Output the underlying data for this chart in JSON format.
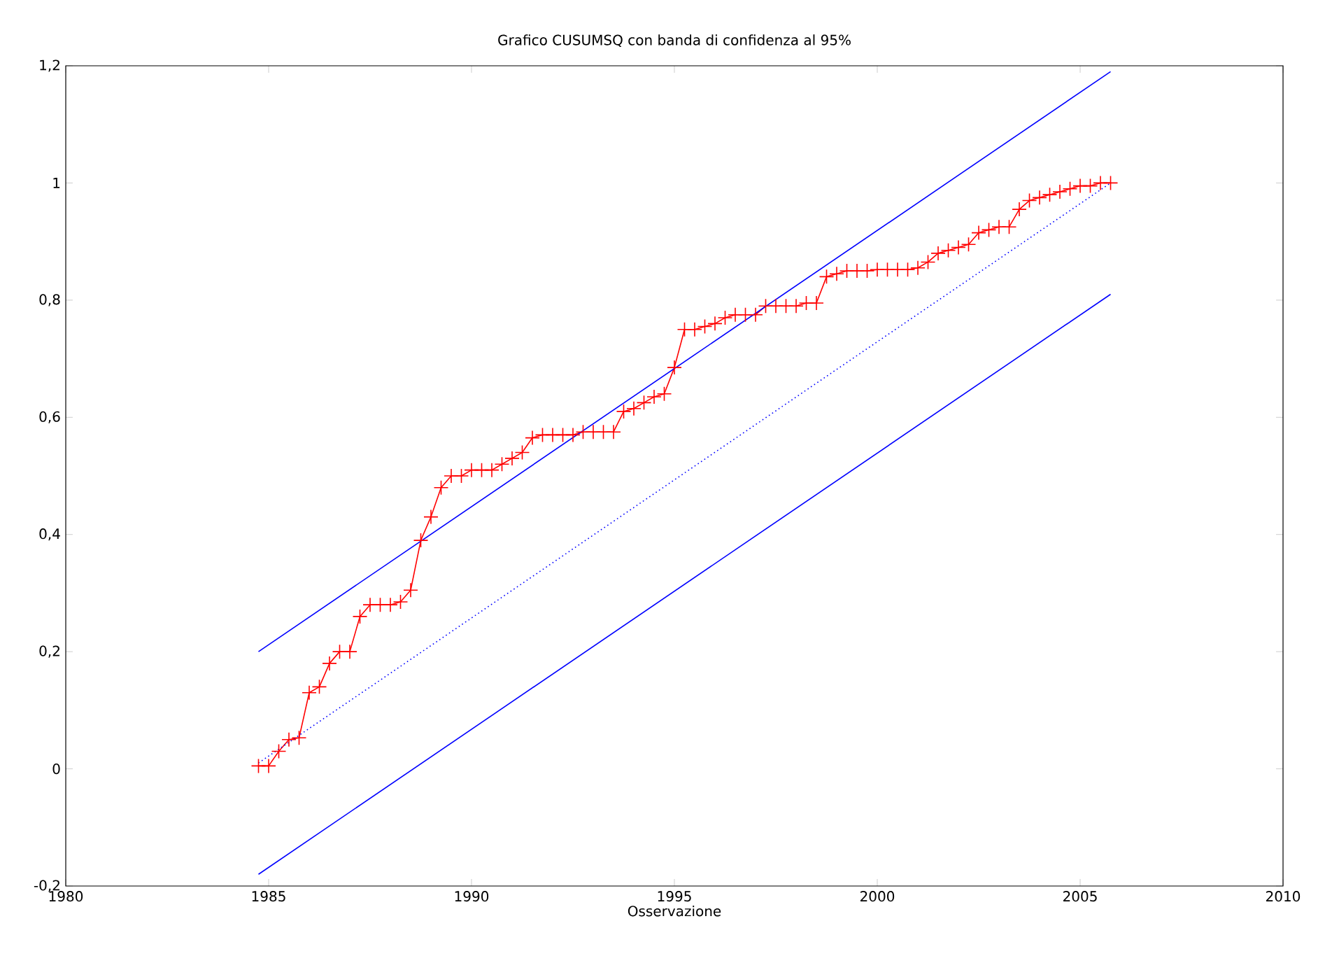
{
  "chart_data": {
    "type": "line",
    "title": "Grafico CUSUMSQ con banda di confidenza al 95%",
    "xlabel": "Osservazione",
    "xlim": [
      1980,
      2010
    ],
    "xticks": [
      1980,
      1985,
      1990,
      1995,
      2000,
      2005,
      2010
    ],
    "ylim": [
      -0.2,
      1.2
    ],
    "yticks": [
      {
        "value": -0.2,
        "label": "-0,2"
      },
      0,
      {
        "value": 0.2,
        "label": "0,2"
      },
      {
        "value": 0.4,
        "label": "0,4"
      },
      {
        "value": 0.6,
        "label": "0,6"
      },
      {
        "value": 0.8,
        "label": "0,8"
      },
      1,
      {
        "value": 1.2,
        "label": "1,2"
      }
    ],
    "series": [
      {
        "color": "#ff0000",
        "marker": "cross",
        "line_style": "solid",
        "x": [
          1984.75,
          1985,
          1985.25,
          1985.5,
          1985.75,
          1986,
          1986.25,
          1986.5,
          1986.75,
          1987,
          1987.25,
          1987.5,
          1987.75,
          1988,
          1988.25,
          1988.5,
          1988.75,
          1989,
          1989.25,
          1989.5,
          1989.75,
          1990,
          1990.25,
          1990.5,
          1990.75,
          1991,
          1991.25,
          1991.5,
          1991.75,
          1992,
          1992.25,
          1992.5,
          1992.75,
          1993,
          1993.25,
          1993.5,
          1993.75,
          1994,
          1994.25,
          1994.5,
          1994.75,
          1995,
          1995.25,
          1995.5,
          1995.75,
          1996,
          1996.25,
          1996.5,
          1996.75,
          1997,
          1997.25,
          1997.5,
          1997.75,
          1998,
          1998.25,
          1998.5,
          1998.75,
          1999,
          1999.25,
          1999.5,
          1999.75,
          2000,
          2000.25,
          2000.5,
          2000.75,
          2001,
          2001.25,
          2001.5,
          2001.75,
          2002,
          2002.25,
          2002.5,
          2002.75,
          2003,
          2003.25,
          2003.5,
          2003.75,
          2004,
          2004.25,
          2004.5,
          2004.75,
          2005,
          2005.25,
          2005.5,
          2005.75
        ],
        "values": [
          0.005,
          0.005,
          0.03,
          0.05,
          0.053,
          0.13,
          0.14,
          0.18,
          0.2,
          0.2,
          0.26,
          0.28,
          0.28,
          0.28,
          0.285,
          0.305,
          0.39,
          0.43,
          0.48,
          0.5,
          0.5,
          0.51,
          0.51,
          0.51,
          0.52,
          0.53,
          0.54,
          0.565,
          0.57,
          0.57,
          0.57,
          0.57,
          0.575,
          0.575,
          0.575,
          0.575,
          0.61,
          0.615,
          0.625,
          0.635,
          0.64,
          0.685,
          0.75,
          0.75,
          0.755,
          0.76,
          0.77,
          0.775,
          0.775,
          0.775,
          0.79,
          0.79,
          0.79,
          0.79,
          0.795,
          0.795,
          0.84,
          0.845,
          0.85,
          0.85,
          0.85,
          0.852,
          0.852,
          0.852,
          0.852,
          0.855,
          0.865,
          0.88,
          0.885,
          0.89,
          0.895,
          0.915,
          0.92,
          0.925,
          0.925,
          0.955,
          0.97,
          0.975,
          0.98,
          0.985,
          0.99,
          0.995,
          0.995,
          1.0,
          1.0
        ]
      },
      {
        "color": "#0000ff",
        "marker": "none",
        "line_style": "solid",
        "x": [
          1984.75,
          2005.75
        ],
        "values": [
          0.2,
          1.19
        ]
      },
      {
        "color": "#0000ff",
        "marker": "none",
        "line_style": "dotted",
        "x": [
          1984.75,
          2005.75
        ],
        "values": [
          0.01,
          1.0
        ]
      },
      {
        "color": "#0000ff",
        "marker": "none",
        "line_style": "solid",
        "x": [
          1984.75,
          2005.75
        ],
        "values": [
          -0.18,
          0.81
        ]
      }
    ]
  }
}
